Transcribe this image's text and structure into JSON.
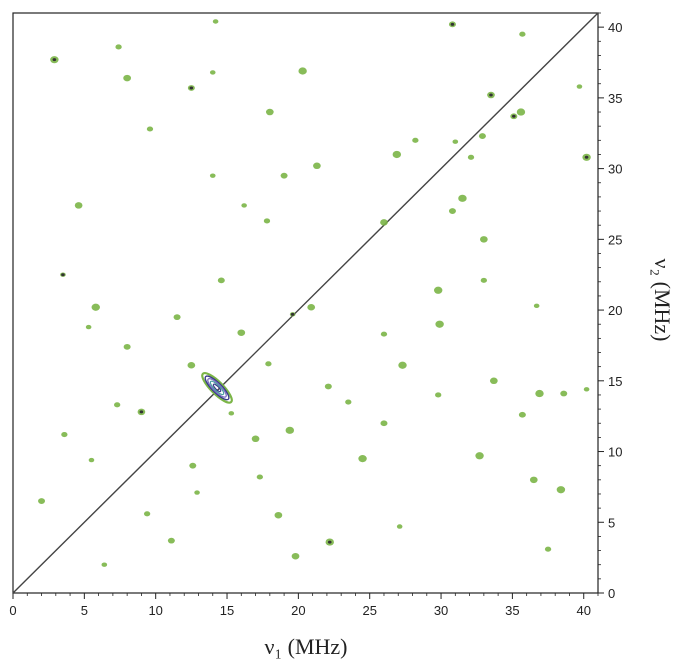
{
  "chart_data": {
    "type": "scatter",
    "xlabel": "ν₁ (MHz)",
    "ylabel": "ν₂ (MHz)",
    "xlim": [
      0,
      41
    ],
    "ylim": [
      0,
      41
    ],
    "x_ticks": [
      0,
      5,
      10,
      15,
      20,
      25,
      30,
      35,
      40
    ],
    "y_ticks": [
      0,
      5,
      10,
      15,
      20,
      25,
      30,
      35,
      40
    ],
    "y_axis_position": "right",
    "grid": false,
    "diagonal_line": {
      "from": [
        0,
        0
      ],
      "to": [
        41,
        41
      ]
    },
    "colors": {
      "peak": "#7bb547",
      "peak_core": "#333333",
      "diagonal": "#444444",
      "frame": "#222222",
      "contour_inner": [
        "#3a3a8a",
        "#7a6fc0",
        "#4aa0a0"
      ]
    },
    "main_peak": {
      "x": 14.3,
      "y": 14.5,
      "orientation": "along-diagonal"
    },
    "points": [
      {
        "x": 14.2,
        "y": 40.4
      },
      {
        "x": 30.8,
        "y": 40.2
      },
      {
        "x": 2.9,
        "y": 37.7
      },
      {
        "x": 7.4,
        "y": 38.6
      },
      {
        "x": 8.0,
        "y": 36.4
      },
      {
        "x": 14.0,
        "y": 36.8
      },
      {
        "x": 12.5,
        "y": 35.7
      },
      {
        "x": 20.3,
        "y": 36.9
      },
      {
        "x": 35.7,
        "y": 39.5
      },
      {
        "x": 33.5,
        "y": 35.2
      },
      {
        "x": 39.7,
        "y": 35.8
      },
      {
        "x": 35.1,
        "y": 33.7
      },
      {
        "x": 35.6,
        "y": 34.0
      },
      {
        "x": 9.6,
        "y": 32.8
      },
      {
        "x": 18.0,
        "y": 34.0
      },
      {
        "x": 31.0,
        "y": 31.9
      },
      {
        "x": 32.9,
        "y": 32.3
      },
      {
        "x": 26.9,
        "y": 31.0
      },
      {
        "x": 28.2,
        "y": 32.0
      },
      {
        "x": 21.3,
        "y": 30.2
      },
      {
        "x": 14.0,
        "y": 29.5
      },
      {
        "x": 19.0,
        "y": 29.5
      },
      {
        "x": 40.2,
        "y": 30.8
      },
      {
        "x": 32.1,
        "y": 30.8
      },
      {
        "x": 4.6,
        "y": 27.4
      },
      {
        "x": 16.2,
        "y": 27.4
      },
      {
        "x": 30.8,
        "y": 27.0
      },
      {
        "x": 31.5,
        "y": 27.9
      },
      {
        "x": 17.8,
        "y": 26.3
      },
      {
        "x": 26.0,
        "y": 26.2
      },
      {
        "x": 3.5,
        "y": 22.5
      },
      {
        "x": 14.6,
        "y": 22.1
      },
      {
        "x": 29.8,
        "y": 21.4
      },
      {
        "x": 33.0,
        "y": 22.1
      },
      {
        "x": 20.9,
        "y": 20.2
      },
      {
        "x": 19.6,
        "y": 19.7
      },
      {
        "x": 11.5,
        "y": 19.5
      },
      {
        "x": 5.8,
        "y": 20.2
      },
      {
        "x": 26.0,
        "y": 18.3
      },
      {
        "x": 16.0,
        "y": 18.4
      },
      {
        "x": 5.3,
        "y": 18.8
      },
      {
        "x": 8.0,
        "y": 17.4
      },
      {
        "x": 29.9,
        "y": 19.0
      },
      {
        "x": 17.9,
        "y": 16.2
      },
      {
        "x": 12.5,
        "y": 16.1
      },
      {
        "x": 36.7,
        "y": 20.3
      },
      {
        "x": 22.1,
        "y": 14.6
      },
      {
        "x": 27.3,
        "y": 16.1
      },
      {
        "x": 29.8,
        "y": 14.0
      },
      {
        "x": 33.7,
        "y": 15.0
      },
      {
        "x": 40.2,
        "y": 14.4
      },
      {
        "x": 38.6,
        "y": 14.1
      },
      {
        "x": 36.9,
        "y": 14.1
      },
      {
        "x": 7.3,
        "y": 13.3
      },
      {
        "x": 9.0,
        "y": 12.8
      },
      {
        "x": 15.3,
        "y": 12.7
      },
      {
        "x": 35.7,
        "y": 12.6
      },
      {
        "x": 19.4,
        "y": 11.5
      },
      {
        "x": 3.6,
        "y": 11.2
      },
      {
        "x": 17.0,
        "y": 10.9
      },
      {
        "x": 5.5,
        "y": 9.4
      },
      {
        "x": 12.6,
        "y": 9.0
      },
      {
        "x": 32.7,
        "y": 9.7
      },
      {
        "x": 17.3,
        "y": 8.2
      },
      {
        "x": 36.5,
        "y": 8.0
      },
      {
        "x": 12.9,
        "y": 7.1
      },
      {
        "x": 2.0,
        "y": 6.5
      },
      {
        "x": 38.4,
        "y": 7.3
      },
      {
        "x": 9.4,
        "y": 5.6
      },
      {
        "x": 18.6,
        "y": 5.5
      },
      {
        "x": 27.1,
        "y": 4.7
      },
      {
        "x": 11.1,
        "y": 3.7
      },
      {
        "x": 22.2,
        "y": 3.6
      },
      {
        "x": 37.5,
        "y": 3.1
      },
      {
        "x": 19.8,
        "y": 2.6
      },
      {
        "x": 6.4,
        "y": 2.0
      },
      {
        "x": 26.0,
        "y": 12.0
      },
      {
        "x": 24.5,
        "y": 9.5
      },
      {
        "x": 23.5,
        "y": 13.5
      },
      {
        "x": 33.0,
        "y": 25.0
      }
    ],
    "dark_core_points": [
      {
        "x": 30.8,
        "y": 40.2
      },
      {
        "x": 33.5,
        "y": 35.2
      },
      {
        "x": 35.1,
        "y": 33.7
      },
      {
        "x": 12.5,
        "y": 35.7
      },
      {
        "x": 40.2,
        "y": 30.8
      },
      {
        "x": 3.5,
        "y": 22.5
      },
      {
        "x": 19.6,
        "y": 19.7
      },
      {
        "x": 22.2,
        "y": 3.6
      },
      {
        "x": 9.0,
        "y": 12.8
      },
      {
        "x": 2.9,
        "y": 37.7
      }
    ]
  }
}
